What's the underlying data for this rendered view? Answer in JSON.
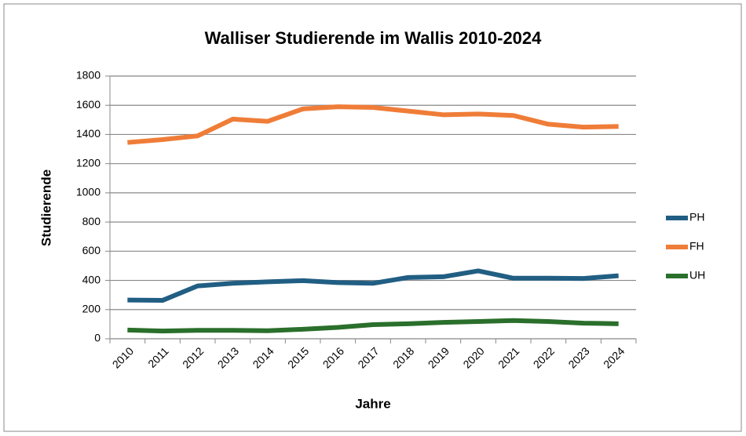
{
  "chart_data": {
    "type": "line",
    "title": "Walliser Studierende im Wallis 2010-2024",
    "x_label": "Jahre",
    "y_label": "Studierende",
    "categories": [
      "2010",
      "2011",
      "2012",
      "2013",
      "2014",
      "2015",
      "2016",
      "2017",
      "2018",
      "2019",
      "2020",
      "2021",
      "2022",
      "2023",
      "2024"
    ],
    "series": [
      {
        "name": "PH",
        "color": "#215e83",
        "values": [
          265,
          263,
          362,
          380,
          390,
          398,
          385,
          380,
          420,
          425,
          465,
          415,
          415,
          413,
          432
        ]
      },
      {
        "name": "FH",
        "color": "#ef7d38",
        "values": [
          1345,
          1365,
          1390,
          1505,
          1490,
          1575,
          1590,
          1585,
          1560,
          1535,
          1540,
          1530,
          1470,
          1450,
          1455
        ]
      },
      {
        "name": "UH",
        "color": "#2a6f2b",
        "values": [
          60,
          53,
          58,
          58,
          55,
          65,
          78,
          97,
          103,
          112,
          118,
          125,
          118,
          107,
          103
        ]
      }
    ],
    "ylim": [
      0,
      1800
    ],
    "yticks": [
      0,
      200,
      400,
      600,
      800,
      1000,
      1200,
      1400,
      1600,
      1800
    ],
    "grid": true,
    "legend": "right"
  }
}
